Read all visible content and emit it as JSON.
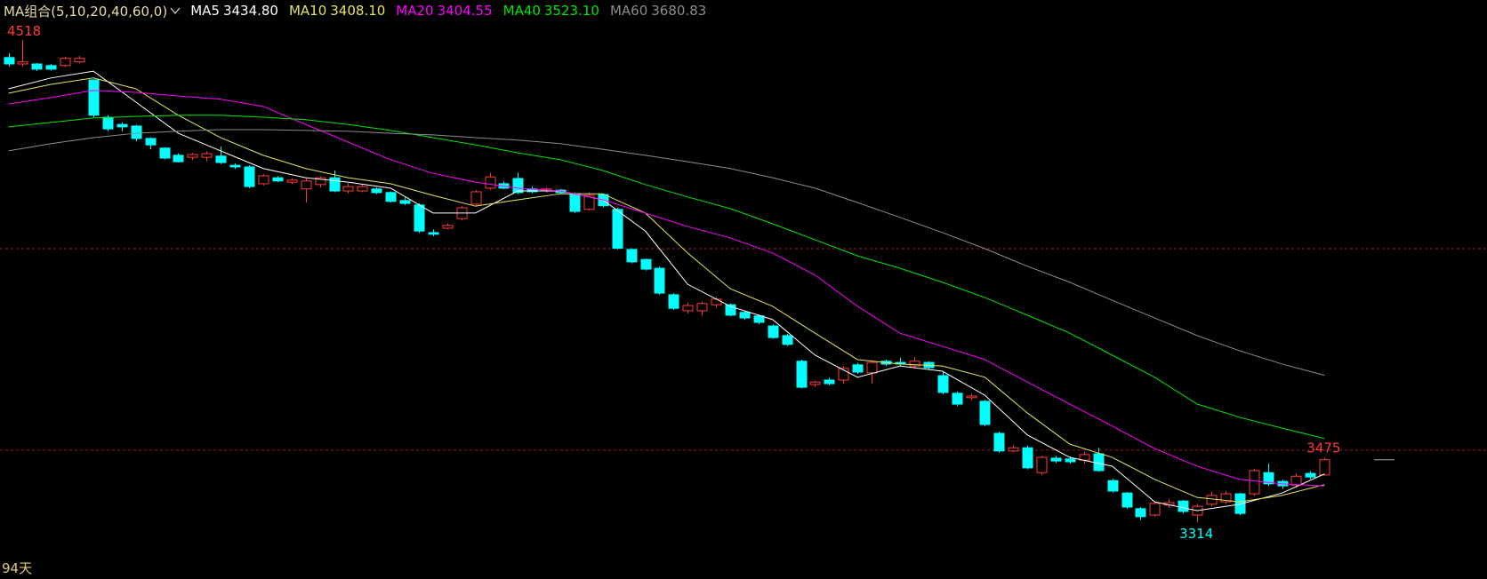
{
  "chart_data": {
    "type": "candlestick",
    "indicator_label": "MA组合(5,10,20,40,60,0)",
    "period_label": "94天",
    "up_color": "#ff3b3b",
    "down_color": "#00ffff",
    "ylim": [
      3250,
      4560
    ],
    "xlim": [
      -0.6,
      96.5
    ],
    "ref_lines": [
      3997,
      3494
    ],
    "ref_color": "#9a1e1e",
    "open": [
      4474,
      4458,
      4458,
      4454,
      4454,
      4463,
      4418,
      4325,
      4307,
      4303,
      4272,
      4248,
      4230,
      4225,
      4225,
      4228,
      4205,
      4201,
      4159,
      4174,
      4163,
      4146,
      4157,
      4174,
      4141,
      4141,
      4146,
      4137,
      4117,
      4106,
      4037,
      4048,
      4072,
      4108,
      4148,
      4159,
      4172,
      4146,
      4141,
      4143,
      4134,
      4095,
      4132,
      4095,
      3995,
      3970,
      3948,
      3882,
      3842,
      3842,
      3857,
      3857,
      3838,
      3829,
      3804,
      3780,
      3716,
      3658,
      3669,
      3669,
      3707,
      3687,
      3716,
      3713,
      3704,
      3713,
      3680,
      3636,
      3625,
      3616,
      3536,
      3492,
      3500,
      3438,
      3474,
      3472,
      3469,
      3485,
      3418,
      3387,
      3348,
      3332,
      3357,
      3367,
      3332,
      3359,
      3365,
      3385,
      3385,
      3438,
      3416,
      3407,
      3436,
      3432
    ],
    "high": [
      4485,
      4518,
      4460,
      4458,
      4476,
      4478,
      4420,
      4330,
      4312,
      4306,
      4275,
      4250,
      4235,
      4236,
      4240,
      4252,
      4210,
      4205,
      4183,
      4178,
      4172,
      4172,
      4178,
      4192,
      4160,
      4158,
      4150,
      4140,
      4125,
      4110,
      4045,
      4060,
      4103,
      4143,
      4186,
      4165,
      4186,
      4152,
      4150,
      4146,
      4137,
      4137,
      4135,
      4099,
      3998,
      3972,
      3952,
      3886,
      3862,
      3865,
      3876,
      3860,
      3842,
      3832,
      3808,
      3784,
      3720,
      3668,
      3675,
      3704,
      3712,
      3718,
      3720,
      3724,
      3726,
      3716,
      3690,
      3640,
      3634,
      3620,
      3540,
      3506,
      3506,
      3480,
      3480,
      3478,
      3490,
      3500,
      3422,
      3390,
      3352,
      3365,
      3372,
      3370,
      3360,
      3390,
      3392,
      3388,
      3448,
      3460,
      3420,
      3436,
      3442,
      3475
    ],
    "low": [
      4451,
      4451,
      4440,
      4442,
      4450,
      4460,
      4325,
      4290,
      4290,
      4265,
      4245,
      4220,
      4212,
      4218,
      4215,
      4208,
      4196,
      4148,
      4155,
      4163,
      4158,
      4112,
      4150,
      4138,
      4135,
      4138,
      4133,
      4112,
      4106,
      4036,
      4028,
      4045,
      4068,
      4105,
      4144,
      4145,
      4133,
      4135,
      4137,
      4133,
      4086,
      4092,
      4100,
      3995,
      3960,
      3942,
      3882,
      3844,
      3835,
      3830,
      3850,
      3828,
      3820,
      3808,
      3772,
      3754,
      3648,
      3652,
      3656,
      3660,
      3684,
      3660,
      3704,
      3705,
      3700,
      3696,
      3634,
      3604,
      3620,
      3554,
      3488,
      3488,
      3446,
      3432,
      3462,
      3460,
      3460,
      3440,
      3388,
      3348,
      3320,
      3328,
      3350,
      3336,
      3314,
      3354,
      3360,
      3332,
      3380,
      3405,
      3398,
      3400,
      3422,
      3430
    ],
    "close": [
      4458,
      4463,
      4445,
      4445,
      4472,
      4472,
      4330,
      4296,
      4301,
      4272,
      4256,
      4223,
      4214,
      4232,
      4234,
      4212,
      4201,
      4152,
      4179,
      4166,
      4168,
      4166,
      4174,
      4141,
      4152,
      4152,
      4137,
      4115,
      4110,
      4041,
      4033,
      4055,
      4099,
      4139,
      4176,
      4148,
      4137,
      4139,
      4146,
      4137,
      4090,
      4130,
      4104,
      3998,
      3964,
      3946,
      3886,
      3848,
      3855,
      3860,
      3871,
      3831,
      3824,
      3813,
      3775,
      3758,
      3651,
      3664,
      3660,
      3698,
      3689,
      3713,
      3709,
      3709,
      3716,
      3700,
      3638,
      3609,
      3629,
      3558,
      3492,
      3500,
      3450,
      3476,
      3467,
      3465,
      3483,
      3443,
      3392,
      3352,
      3328,
      3361,
      3363,
      3341,
      3354,
      3381,
      3385,
      3336,
      3443,
      3410,
      3405,
      3429,
      3427,
      3470
    ],
    "ma_x": [
      0,
      3,
      6,
      9,
      12,
      15,
      18,
      21,
      24,
      27,
      30,
      33,
      36,
      39,
      42,
      45,
      48,
      51,
      54,
      57,
      60,
      63,
      66,
      69,
      72,
      75,
      78,
      81,
      84,
      87,
      90,
      93
    ],
    "series": [
      {
        "name": "MA5",
        "color": "#ffffff",
        "last": {
          "value": 3434.8,
          "label": "3434.80"
        },
        "values": [
          4396,
          4423,
          4440,
          4363,
          4285,
          4241,
          4197,
          4174,
          4163,
          4148,
          4086,
          4086,
          4141,
          4141,
          4119,
          4041,
          3908,
          3853,
          3820,
          3731,
          3676,
          3704,
          3691,
          3631,
          3532,
          3476,
          3454,
          3365,
          3343,
          3359,
          3387,
          3434.8
        ]
      },
      {
        "name": "MA10",
        "color": "#e6e65c",
        "last": {
          "value": 3408.1,
          "label": "3408.10"
        },
        "values": [
          4385,
          4407,
          4423,
          4396,
          4330,
          4274,
          4230,
          4197,
          4174,
          4159,
          4130,
          4103,
          4119,
          4134,
          4134,
          4086,
          3986,
          3897,
          3853,
          3786,
          3720,
          3709,
          3704,
          3676,
          3587,
          3509,
          3476,
          3421,
          3376,
          3365,
          3381,
          3408.1
        ]
      },
      {
        "name": "MA20",
        "color": "#ff00ff",
        "last": {
          "value": 3404.55,
          "label": "3404.55"
        },
        "values": [
          4358,
          4374,
          4392,
          4387,
          4378,
          4370,
          4352,
          4307,
          4263,
          4219,
          4185,
          4163,
          4148,
          4141,
          4119,
          4086,
          4052,
          4024,
          3986,
          3931,
          3853,
          3786,
          3753,
          3720,
          3664,
          3609,
          3554,
          3498,
          3454,
          3421,
          3410,
          3404.55
        ]
      },
      {
        "name": "MA40",
        "color": "#00e600",
        "last": {
          "value": 3523.1,
          "label": "3523.10"
        },
        "values": [
          4301,
          4312,
          4323,
          4327,
          4330,
          4330,
          4325,
          4319,
          4307,
          4292,
          4274,
          4256,
          4236,
          4219,
          4192,
          4157,
          4126,
          4097,
          4059,
          4019,
          3979,
          3948,
          3913,
          3875,
          3831,
          3786,
          3731,
          3676,
          3609,
          3576,
          3549,
          3523.1
        ]
      },
      {
        "name": "MA60",
        "color": "#8c8c8c",
        "last": {
          "value": 3680.83,
          "label": "3680.83"
        },
        "values": [
          4241,
          4259,
          4274,
          4285,
          4290,
          4294,
          4294,
          4292,
          4290,
          4285,
          4281,
          4274,
          4268,
          4259,
          4245,
          4230,
          4214,
          4197,
          4174,
          4148,
          4112,
          4075,
          4037,
          3997,
          3953,
          3913,
          3868,
          3824,
          3780,
          3742,
          3709,
          3680.83
        ]
      }
    ]
  }
}
